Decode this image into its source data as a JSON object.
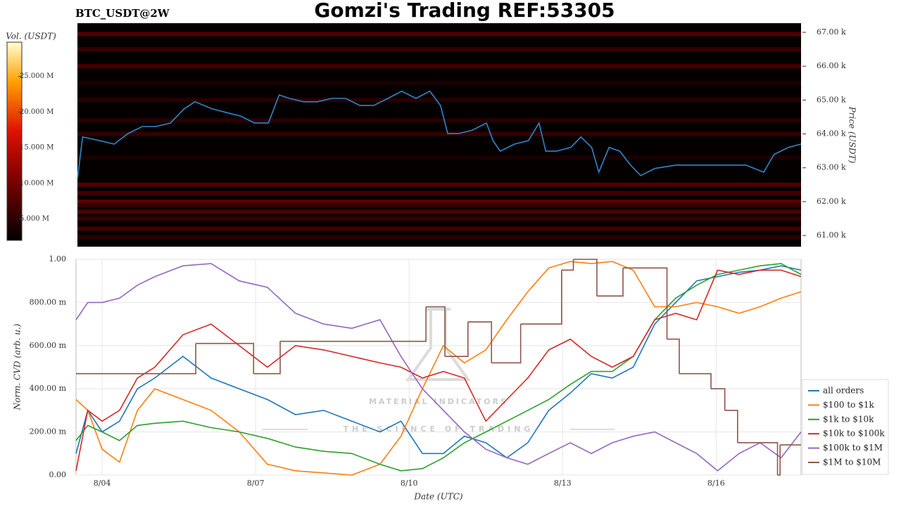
{
  "chart_data": [
    {
      "type": "heatmap",
      "title": "Gomzi's Trading REF:53305",
      "subtitle": "BTC_USDT@2W",
      "ylabel": "Price (USDT)",
      "xlim": [
        3.49,
        17.66
      ],
      "ylim": [
        60670,
        67270
      ],
      "yticks": [
        {
          "value": 61000,
          "label": "61.00 k"
        },
        {
          "value": 62000,
          "label": "62.00 k"
        },
        {
          "value": 63000,
          "label": "63.00 k"
        },
        {
          "value": 64000,
          "label": "64.00 k"
        },
        {
          "value": 65000,
          "label": "65.00 k"
        },
        {
          "value": 66000,
          "label": "66.00 k"
        },
        {
          "value": 67000,
          "label": "67.00 k"
        }
      ],
      "colorbar": {
        "label": "Vol. (USDT)",
        "lim": [
          2000000,
          29800000
        ],
        "ticks": [
          {
            "value": 5000000,
            "label": "5.000 M"
          },
          {
            "value": 10000000,
            "label": "10.000 M"
          },
          {
            "value": 15000000,
            "label": "15.000 M"
          },
          {
            "value": 20000000,
            "label": "20.000 M"
          },
          {
            "value": 25000000,
            "label": "25.000 M"
          }
        ]
      },
      "bands": {
        "levels": [
          66950,
          66500,
          66000,
          65500,
          65000,
          64400,
          64000,
          63300,
          62500,
          62250,
          62000,
          61900,
          61700,
          61500,
          61200,
          60950
        ],
        "values": [
          8000000,
          6000000,
          7000000,
          4000000,
          5000000,
          5000000,
          6000000,
          4000000,
          8000000,
          7000000,
          9000000,
          6000000,
          8000000,
          6000000,
          7000000,
          5000000
        ]
      },
      "line": {
        "color": "#2f86c8",
        "x": [
          3.49,
          3.59,
          3.93,
          4.21,
          4.48,
          4.76,
          5.03,
          5.31,
          5.58,
          5.79,
          6.13,
          6.41,
          6.68,
          6.96,
          7.23,
          7.44,
          7.64,
          7.92,
          8.19,
          8.47,
          8.74,
          9.02,
          9.29,
          9.57,
          9.84,
          10.12,
          10.39,
          10.6,
          10.74,
          10.95,
          11.22,
          11.5,
          11.63,
          11.77,
          12.05,
          12.32,
          12.53,
          12.66,
          12.87,
          13.15,
          13.35,
          13.56,
          13.7,
          13.9,
          14.11,
          14.32,
          14.52,
          14.8,
          15.21,
          15.62,
          16.03,
          16.58,
          16.93,
          17.13,
          17.41,
          17.66
        ],
        "values": [
          62660,
          63910,
          63800,
          63700,
          64010,
          64220,
          64220,
          64320,
          64740,
          64950,
          64740,
          64630,
          64530,
          64320,
          64320,
          65150,
          65050,
          64950,
          64950,
          65050,
          65050,
          64840,
          64840,
          65050,
          65260,
          65050,
          65260,
          64840,
          64010,
          64010,
          64110,
          64320,
          63800,
          63490,
          63700,
          63800,
          64320,
          63490,
          63490,
          63600,
          63910,
          63600,
          62870,
          63600,
          63490,
          63080,
          62770,
          62980,
          63080,
          63080,
          63080,
          63080,
          62870,
          63390,
          63600,
          63700
        ]
      }
    },
    {
      "type": "line",
      "ylabel": "Norm. CVD (arb. u.)",
      "xlabel": "Date (UTC)",
      "xlim": [
        3.49,
        17.66
      ],
      "ylim": [
        0,
        1
      ],
      "xticks": [
        {
          "value": 4,
          "label": "8/04"
        },
        {
          "value": 7,
          "label": "8/07"
        },
        {
          "value": 10,
          "label": "8/10"
        },
        {
          "value": 13,
          "label": "8/13"
        },
        {
          "value": 16,
          "label": "8/16"
        }
      ],
      "yticks": [
        {
          "value": 0,
          "label": "0.00"
        },
        {
          "value": 0.2,
          "label": "200.00 m"
        },
        {
          "value": 0.4,
          "label": "400.00 m"
        },
        {
          "value": 0.6,
          "label": "600.00 m"
        },
        {
          "value": 0.8,
          "label": "800.00 m"
        },
        {
          "value": 1,
          "label": "1.00"
        }
      ],
      "grid": true,
      "legend": "right",
      "watermark": {
        "title": "MATERIAL INDICATORS",
        "subtitle": "THE SCIENCE OF TRADING"
      },
      "x": [
        3.49,
        3.72,
        4.0,
        4.34,
        4.69,
        5.03,
        5.58,
        6.13,
        6.68,
        7.23,
        7.78,
        8.33,
        8.88,
        9.43,
        9.84,
        10.26,
        10.67,
        11.08,
        11.5,
        11.91,
        12.32,
        12.73,
        13.15,
        13.56,
        13.97,
        14.38,
        14.8,
        15.21,
        15.62,
        16.03,
        16.45,
        16.86,
        17.27,
        17.66
      ],
      "series": [
        {
          "name": "all orders",
          "color": "#1f77b4",
          "values": [
            0.1,
            0.3,
            0.2,
            0.25,
            0.4,
            0.45,
            0.55,
            0.45,
            0.4,
            0.35,
            0.28,
            0.3,
            0.25,
            0.2,
            0.25,
            0.1,
            0.1,
            0.18,
            0.15,
            0.08,
            0.15,
            0.3,
            0.38,
            0.47,
            0.45,
            0.5,
            0.7,
            0.8,
            0.9,
            0.92,
            0.94,
            0.95,
            0.97,
            0.95
          ]
        },
        {
          "name": "$100 to $1k",
          "color": "#ff7f0e",
          "values": [
            0.35,
            0.3,
            0.12,
            0.06,
            0.3,
            0.4,
            0.35,
            0.3,
            0.2,
            0.05,
            0.02,
            0.01,
            0.0,
            0.05,
            0.18,
            0.4,
            0.6,
            0.52,
            0.58,
            0.72,
            0.85,
            0.96,
            0.99,
            0.98,
            0.99,
            0.95,
            0.78,
            0.78,
            0.8,
            0.78,
            0.75,
            0.78,
            0.82,
            0.85
          ]
        },
        {
          "name": "$1k to $10k",
          "color": "#2ca02c",
          "values": [
            0.16,
            0.23,
            0.2,
            0.16,
            0.23,
            0.24,
            0.25,
            0.22,
            0.2,
            0.17,
            0.13,
            0.11,
            0.1,
            0.05,
            0.02,
            0.03,
            0.08,
            0.15,
            0.2,
            0.25,
            0.3,
            0.35,
            0.42,
            0.48,
            0.48,
            0.55,
            0.72,
            0.82,
            0.88,
            0.93,
            0.95,
            0.97,
            0.98,
            0.93
          ]
        },
        {
          "name": "$10k to $100k",
          "color": "#d62728",
          "values": [
            0.02,
            0.3,
            0.25,
            0.3,
            0.45,
            0.5,
            0.65,
            0.7,
            0.6,
            0.5,
            0.6,
            0.58,
            0.55,
            0.52,
            0.5,
            0.45,
            0.48,
            0.45,
            0.25,
            0.35,
            0.45,
            0.58,
            0.63,
            0.55,
            0.5,
            0.55,
            0.72,
            0.75,
            0.72,
            0.95,
            0.93,
            0.95,
            0.95,
            0.92
          ]
        },
        {
          "name": "$100k to $1M",
          "color": "#9467bd",
          "values": [
            0.72,
            0.8,
            0.8,
            0.82,
            0.88,
            0.92,
            0.97,
            0.98,
            0.9,
            0.87,
            0.75,
            0.7,
            0.68,
            0.72,
            0.55,
            0.4,
            0.3,
            0.2,
            0.12,
            0.08,
            0.05,
            0.1,
            0.15,
            0.1,
            0.15,
            0.18,
            0.2,
            0.15,
            0.1,
            0.02,
            0.1,
            0.15,
            0.08,
            0.2
          ]
        },
        {
          "name": "$1M to $10M",
          "color": "#8c564b",
          "step": "post",
          "x": [
            3.49,
            5.83,
            6.96,
            7.48,
            10.33,
            10.7,
            11.15,
            11.61,
            12.18,
            12.98,
            13.21,
            13.67,
            14.18,
            15.04,
            15.28,
            15.9,
            16.17,
            16.42,
            17.2,
            17.25
          ],
          "values": [
            0.47,
            0.61,
            0.47,
            0.62,
            0.78,
            0.55,
            0.71,
            0.52,
            0.7,
            0.95,
            1.0,
            0.83,
            0.96,
            0.63,
            0.47,
            0.4,
            0.3,
            0.15,
            0.0,
            0.14
          ]
        }
      ]
    }
  ]
}
